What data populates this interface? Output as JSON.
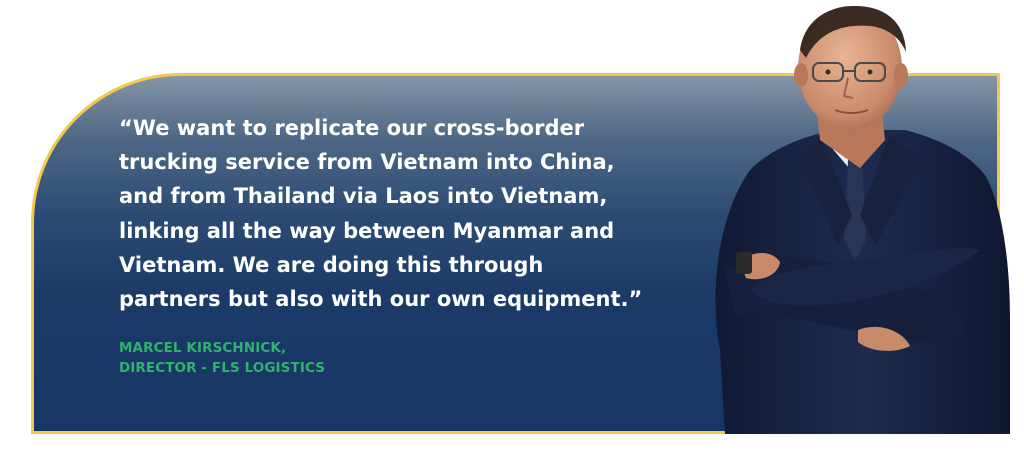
{
  "quote": {
    "text": "“We want to replicate our cross-border\ntrucking service from Vietnam into China,\nand from Thailand via Laos into Vietnam,\nlinking all the way between Myanmar and\nVietnam. We are doing this through\npartners but also with our own equipment.”"
  },
  "attribution": {
    "name": "MARCEL KIRSCHNICK,",
    "title": "DIRECTOR - FLS LOGISTICS"
  },
  "colors": {
    "card_border": "#f2c94c",
    "card_top": "#8495a5",
    "card_bottom": "#173566",
    "quote_text": "#ffffff",
    "attribution_text": "#2db56b"
  }
}
